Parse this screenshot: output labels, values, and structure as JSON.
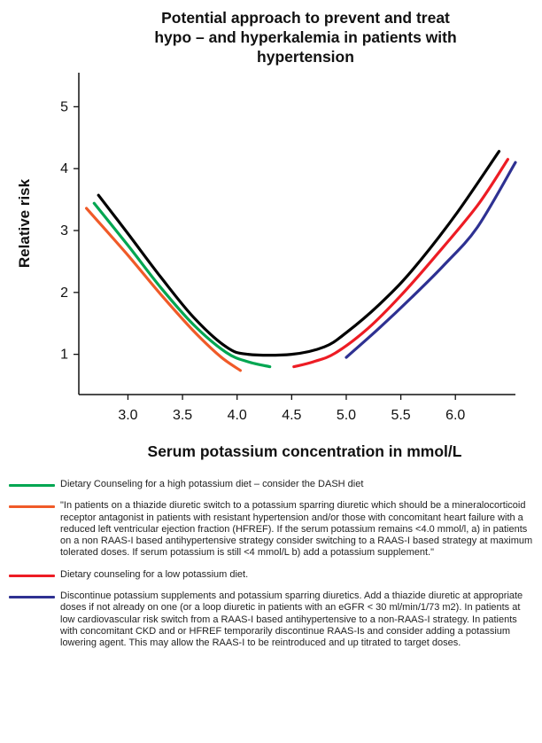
{
  "chart_data": {
    "type": "line",
    "title": [
      "Potential approach to prevent and treat",
      "hypo – and hyperkalemia in patients with",
      "hypertension"
    ],
    "xlabel": "Serum potassium concentration in mmol/L",
    "ylabel": "Relative risk",
    "xlim": [
      2.55,
      6.55
    ],
    "ylim": [
      0.35,
      5.55
    ],
    "xticks": [
      "3.0",
      "3.5",
      "4.0",
      "4.5",
      "5.0",
      "5.5",
      "6.0"
    ],
    "yticks": [
      "1",
      "2",
      "3",
      "4",
      "5"
    ],
    "grid": false,
    "legend_position": "bottom",
    "series": [
      {
        "color": "#000000",
        "points": [
          [
            2.73,
            3.57
          ],
          [
            3.0,
            2.95
          ],
          [
            3.3,
            2.25
          ],
          [
            3.6,
            1.6
          ],
          [
            3.9,
            1.12
          ],
          [
            4.1,
            1.0
          ],
          [
            4.5,
            1.0
          ],
          [
            4.8,
            1.12
          ],
          [
            5.0,
            1.35
          ],
          [
            5.3,
            1.8
          ],
          [
            5.6,
            2.35
          ],
          [
            6.0,
            3.25
          ],
          [
            6.4,
            4.28
          ]
        ]
      },
      {
        "color": "#00a651",
        "points": [
          [
            2.69,
            3.44
          ],
          [
            3.0,
            2.76
          ],
          [
            3.3,
            2.08
          ],
          [
            3.6,
            1.48
          ],
          [
            3.9,
            1.03
          ],
          [
            4.1,
            0.88
          ],
          [
            4.3,
            0.8
          ]
        ]
      },
      {
        "color": "#f05a28",
        "points": [
          [
            2.62,
            3.36
          ],
          [
            3.0,
            2.6
          ],
          [
            3.3,
            1.97
          ],
          [
            3.6,
            1.38
          ],
          [
            3.85,
            0.96
          ],
          [
            4.03,
            0.74
          ]
        ]
      },
      {
        "color": "#ed1c24",
        "points": [
          [
            4.52,
            0.8
          ],
          [
            4.7,
            0.88
          ],
          [
            4.9,
            1.02
          ],
          [
            5.2,
            1.42
          ],
          [
            5.5,
            1.95
          ],
          [
            5.8,
            2.55
          ],
          [
            6.2,
            3.4
          ],
          [
            6.48,
            4.15
          ]
        ]
      },
      {
        "color": "#2e3192",
        "points": [
          [
            5.0,
            0.95
          ],
          [
            5.3,
            1.42
          ],
          [
            5.6,
            1.92
          ],
          [
            5.9,
            2.45
          ],
          [
            6.2,
            3.05
          ],
          [
            6.55,
            4.1
          ]
        ]
      }
    ]
  },
  "legend": [
    {
      "color": "#00a651",
      "text": "Dietary Counseling  for a high potassium diet – consider the DASH diet"
    },
    {
      "color": "#f05a28",
      "text": "\"In patients on a thiazide diuretic switch to a potassium sparring diuretic which should be a mineralocorticoid receptor antagonist in patients with resistant hypertension and/or those with concomitant heart failure with a reduced left ventricular ejection fraction (HFREF). If the serum potassium remains <4.0 mmol/l, a) in patients on a non RAAS-I based antihypertensive strategy consider switching to a RAAS-I based strategy at maximum tolerated doses. If serum potassium is still <4 mmol/L b) add a potassium supplement.\""
    },
    {
      "color": "#ed1c24",
      "text": "Dietary counseling for a low potassium diet."
    },
    {
      "color": "#2e3192",
      "text": "Discontinue potassium supplements and potassium sparring diuretics. Add a thiazide diuretic at appropriate doses if not already on one (or a loop diuretic in patients with an eGFR < 30 ml/min/1/73 m2). In patients at low cardiovascular risk switch from a RAAS-I based antihypertensive to a non-RAAS-I strategy. In patients with concomitant CKD and or HFREF temporarily discontinue RAAS-Is and consider adding a potassium lowering agent. This may allow the RAAS-I to be reintroduced and up titrated to target doses."
    }
  ]
}
